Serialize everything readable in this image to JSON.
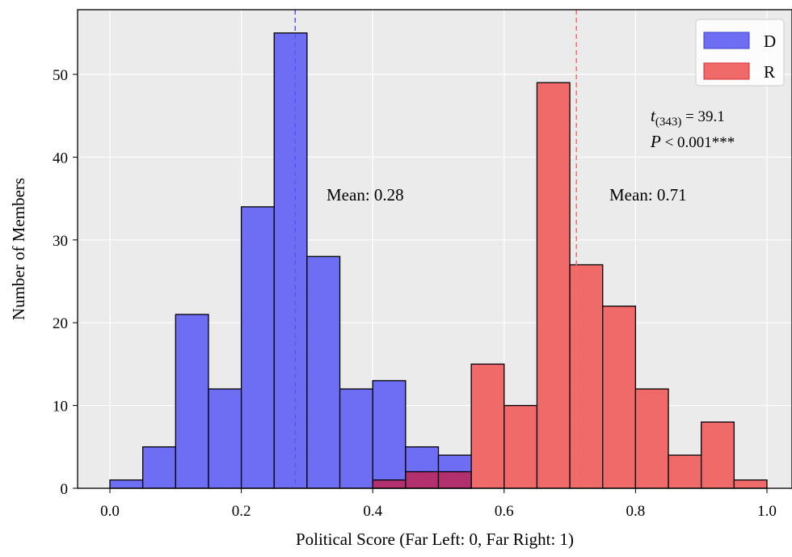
{
  "chart_data": {
    "type": "bar",
    "xlabel": "Political Score (Far Left: 0, Far Right: 1)",
    "ylabel": "Number of Members",
    "xlim": [
      -0.05,
      1.05
    ],
    "ylim": [
      0,
      58
    ],
    "xticks": [
      "0.0",
      "0.2",
      "0.4",
      "0.6",
      "0.8",
      "1.0"
    ],
    "yticks": [
      "0",
      "10",
      "20",
      "30",
      "40",
      "50"
    ],
    "grid": true,
    "legend_position": "top-right",
    "bin_width": 0.05,
    "bin_starts": [
      0.0,
      0.05,
      0.1,
      0.15,
      0.2,
      0.25,
      0.3,
      0.35,
      0.4,
      0.45,
      0.5,
      0.55,
      0.6,
      0.65,
      0.7,
      0.75,
      0.8,
      0.85,
      0.9,
      0.95
    ],
    "series": [
      {
        "name": "D",
        "color": "#6e6ef5",
        "values": [
          1,
          5,
          21,
          12,
          34,
          55,
          28,
          12,
          13,
          5,
          4,
          0,
          0,
          0,
          0,
          0,
          0,
          0,
          0,
          0
        ]
      },
      {
        "name": "R",
        "color": "#f06a6a",
        "values": [
          0,
          0,
          0,
          0,
          0,
          0,
          0,
          0,
          1,
          2,
          2,
          15,
          10,
          49,
          27,
          22,
          12,
          4,
          8,
          1
        ]
      }
    ],
    "overlap_color": "#b2306e",
    "means": [
      {
        "series": "D",
        "value": 0.282,
        "label": "Mean: 0.28"
      },
      {
        "series": "R",
        "value": 0.71,
        "label": "Mean: 0.71"
      }
    ],
    "stat": {
      "t_symbol": "t",
      "t_subscript": "(343)",
      "t_value": " = 39.1",
      "p_symbol": "P",
      "p_text": " < 0.001***"
    }
  }
}
